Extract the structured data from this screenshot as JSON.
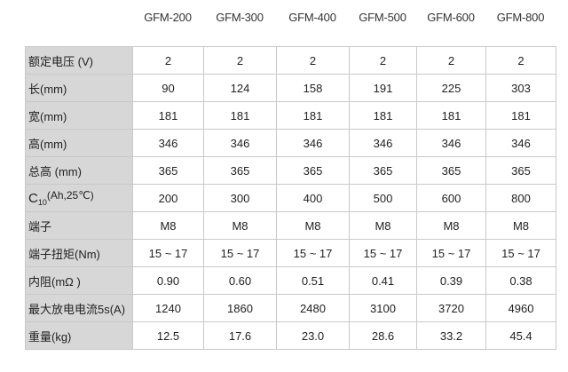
{
  "columns": [
    "GFM-200",
    "GFM-300",
    "GFM-400",
    "GFM-500",
    "GFM-600",
    "GFM-800"
  ],
  "rows": [
    {
      "label": "额定电压 (V)",
      "values": [
        "2",
        "2",
        "2",
        "2",
        "2",
        "2"
      ]
    },
    {
      "label": "长(mm)",
      "values": [
        "90",
        "124",
        "158",
        "191",
        "225",
        "303"
      ]
    },
    {
      "label": "宽(mm)",
      "values": [
        "181",
        "181",
        "181",
        "181",
        "181",
        "181"
      ]
    },
    {
      "label": "高(mm)",
      "values": [
        "346",
        "346",
        "346",
        "346",
        "346",
        "346"
      ]
    },
    {
      "label": "总高 (mm)",
      "values": [
        "365",
        "365",
        "365",
        "365",
        "365",
        "365"
      ]
    },
    {
      "label_c": "C",
      "label_sub": "10",
      "label_tail": "(Ah,25℃)",
      "values": [
        "200",
        "300",
        "400",
        "500",
        "600",
        "800"
      ]
    },
    {
      "label": "端子",
      "values": [
        "M8",
        "M8",
        "M8",
        "M8",
        "M8",
        "M8"
      ]
    },
    {
      "label": "端子扭矩(Nm)",
      "values": [
        "15 ~ 17",
        "15 ~ 17",
        "15 ~ 17",
        "15 ~ 17",
        "15 ~ 17",
        "15 ~ 17"
      ]
    },
    {
      "label": "内阻(mΩ )",
      "values": [
        "0.90",
        "0.60",
        "0.51",
        "0.41",
        "0.39",
        "0.38"
      ]
    },
    {
      "label": "最大放电电流5s(A)",
      "values": [
        "1240",
        "1860",
        "2480",
        "3100",
        "3720",
        "4960"
      ]
    },
    {
      "label": "重量(kg)",
      "values": [
        "12.5",
        "17.6",
        "23.0",
        "28.6",
        "33.2",
        "45.4"
      ]
    }
  ]
}
